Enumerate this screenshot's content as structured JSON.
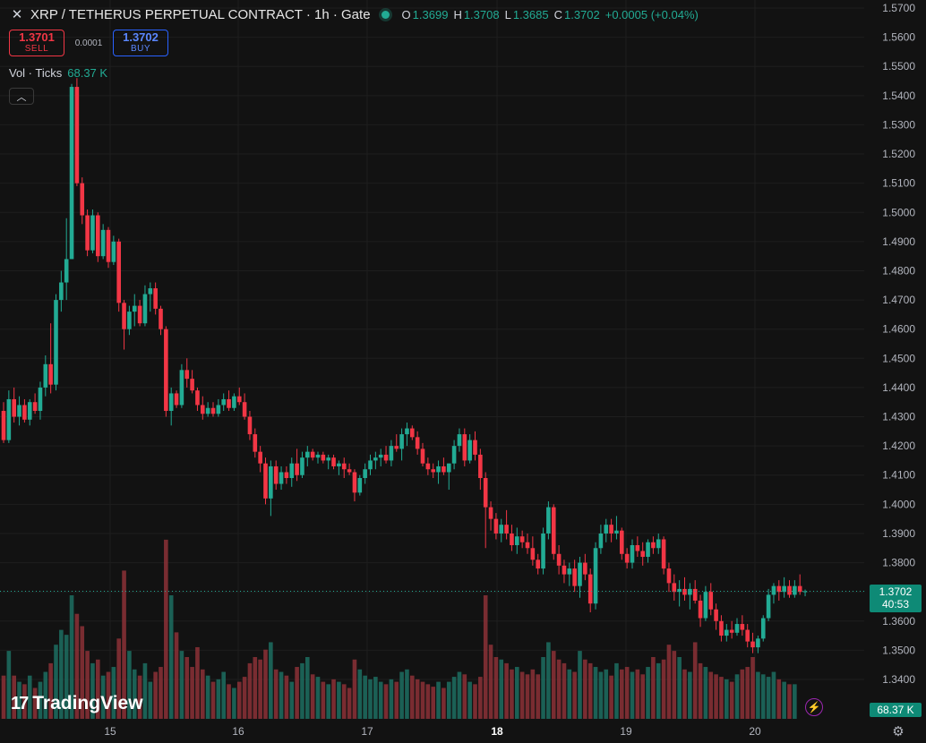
{
  "header": {
    "symbol_icon": "close-x-icon",
    "title": "XRP / TETHERUS PERPETUAL CONTRACT · 1h · Gate",
    "status_color": "#22ab94",
    "ohlc": {
      "o_label": "O",
      "o": "1.3699",
      "h_label": "H",
      "h": "1.3708",
      "l_label": "L",
      "l": "1.3685",
      "c_label": "C",
      "c": "1.3702"
    },
    "change": "+0.0005 (+0.04%)"
  },
  "trade": {
    "sell_price": "1.3701",
    "sell_label": "SELL",
    "spread": "0.0001",
    "buy_price": "1.3702",
    "buy_label": "BUY"
  },
  "volume_legend": {
    "label": "Vol · Ticks",
    "value": "68.37 K"
  },
  "collapse_icon": "chevron-up-icon",
  "logo": {
    "text": "TradingView",
    "mark_icon": "tradingview-logo-icon"
  },
  "price_axis": {
    "ticks": [
      "1.5700",
      "1.5600",
      "1.5500",
      "1.5400",
      "1.5300",
      "1.5200",
      "1.5100",
      "1.5000",
      "1.4900",
      "1.4800",
      "1.4700",
      "1.4600",
      "1.4500",
      "1.4400",
      "1.4300",
      "1.4200",
      "1.4100",
      "1.4000",
      "1.3900",
      "1.3800",
      "1.3700",
      "1.3600",
      "1.3500",
      "1.3400"
    ],
    "last_price": "1.3702",
    "countdown": "40:53",
    "last_volume": "68.37 K"
  },
  "time_axis": {
    "labels": [
      "15",
      "16",
      "17",
      "18",
      "19",
      "20"
    ]
  },
  "colors": {
    "up": "#22ab94",
    "down": "#f23645",
    "background": "#121212",
    "grid": "#1e1e1e"
  },
  "bottom_icons": {
    "bolt": "bolt-icon",
    "settings": "gear-icon"
  },
  "chart_data": {
    "type": "candlestick",
    "interval": "1h",
    "price_range": [
      1.335,
      1.572
    ],
    "candles": [
      {
        "o": 1.432,
        "h": 1.435,
        "l": 1.421,
        "c": 1.422
      },
      {
        "o": 1.422,
        "h": 1.439,
        "l": 1.421,
        "c": 1.436
      },
      {
        "o": 1.436,
        "h": 1.44,
        "l": 1.428,
        "c": 1.43
      },
      {
        "o": 1.43,
        "h": 1.437,
        "l": 1.427,
        "c": 1.434
      },
      {
        "o": 1.434,
        "h": 1.436,
        "l": 1.428,
        "c": 1.429
      },
      {
        "o": 1.429,
        "h": 1.436,
        "l": 1.427,
        "c": 1.435
      },
      {
        "o": 1.435,
        "h": 1.438,
        "l": 1.431,
        "c": 1.432
      },
      {
        "o": 1.432,
        "h": 1.442,
        "l": 1.429,
        "c": 1.44
      },
      {
        "o": 1.44,
        "h": 1.451,
        "l": 1.437,
        "c": 1.448
      },
      {
        "o": 1.448,
        "h": 1.462,
        "l": 1.438,
        "c": 1.441
      },
      {
        "o": 1.441,
        "h": 1.472,
        "l": 1.439,
        "c": 1.47
      },
      {
        "o": 1.47,
        "h": 1.48,
        "l": 1.466,
        "c": 1.476
      },
      {
        "o": 1.476,
        "h": 1.498,
        "l": 1.47,
        "c": 1.484
      },
      {
        "o": 1.484,
        "h": 1.544,
        "l": 1.484,
        "c": 1.543
      },
      {
        "o": 1.543,
        "h": 1.546,
        "l": 1.509,
        "c": 1.51
      },
      {
        "o": 1.51,
        "h": 1.512,
        "l": 1.496,
        "c": 1.499
      },
      {
        "o": 1.499,
        "h": 1.501,
        "l": 1.485,
        "c": 1.487
      },
      {
        "o": 1.487,
        "h": 1.501,
        "l": 1.486,
        "c": 1.499
      },
      {
        "o": 1.499,
        "h": 1.5,
        "l": 1.483,
        "c": 1.485
      },
      {
        "o": 1.485,
        "h": 1.496,
        "l": 1.484,
        "c": 1.494
      },
      {
        "o": 1.494,
        "h": 1.495,
        "l": 1.481,
        "c": 1.483
      },
      {
        "o": 1.483,
        "h": 1.492,
        "l": 1.482,
        "c": 1.49
      },
      {
        "o": 1.49,
        "h": 1.491,
        "l": 1.466,
        "c": 1.469
      },
      {
        "o": 1.469,
        "h": 1.47,
        "l": 1.453,
        "c": 1.46
      },
      {
        "o": 1.46,
        "h": 1.468,
        "l": 1.458,
        "c": 1.466
      },
      {
        "o": 1.466,
        "h": 1.472,
        "l": 1.461,
        "c": 1.468
      },
      {
        "o": 1.468,
        "h": 1.47,
        "l": 1.461,
        "c": 1.462
      },
      {
        "o": 1.462,
        "h": 1.475,
        "l": 1.461,
        "c": 1.472
      },
      {
        "o": 1.472,
        "h": 1.476,
        "l": 1.466,
        "c": 1.474
      },
      {
        "o": 1.474,
        "h": 1.476,
        "l": 1.465,
        "c": 1.467
      },
      {
        "o": 1.467,
        "h": 1.468,
        "l": 1.458,
        "c": 1.46
      },
      {
        "o": 1.46,
        "h": 1.461,
        "l": 1.43,
        "c": 1.432
      },
      {
        "o": 1.432,
        "h": 1.44,
        "l": 1.427,
        "c": 1.438
      },
      {
        "o": 1.438,
        "h": 1.439,
        "l": 1.433,
        "c": 1.434
      },
      {
        "o": 1.434,
        "h": 1.448,
        "l": 1.433,
        "c": 1.446
      },
      {
        "o": 1.446,
        "h": 1.45,
        "l": 1.44,
        "c": 1.443
      },
      {
        "o": 1.443,
        "h": 1.446,
        "l": 1.438,
        "c": 1.439
      },
      {
        "o": 1.439,
        "h": 1.44,
        "l": 1.432,
        "c": 1.434
      },
      {
        "o": 1.434,
        "h": 1.437,
        "l": 1.429,
        "c": 1.431
      },
      {
        "o": 1.431,
        "h": 1.435,
        "l": 1.43,
        "c": 1.433
      },
      {
        "o": 1.433,
        "h": 1.435,
        "l": 1.43,
        "c": 1.431
      },
      {
        "o": 1.431,
        "h": 1.436,
        "l": 1.43,
        "c": 1.434
      },
      {
        "o": 1.434,
        "h": 1.438,
        "l": 1.432,
        "c": 1.436
      },
      {
        "o": 1.436,
        "h": 1.439,
        "l": 1.432,
        "c": 1.433
      },
      {
        "o": 1.433,
        "h": 1.438,
        "l": 1.432,
        "c": 1.437
      },
      {
        "o": 1.437,
        "h": 1.44,
        "l": 1.434,
        "c": 1.435
      },
      {
        "o": 1.435,
        "h": 1.438,
        "l": 1.429,
        "c": 1.43
      },
      {
        "o": 1.43,
        "h": 1.432,
        "l": 1.422,
        "c": 1.424
      },
      {
        "o": 1.424,
        "h": 1.426,
        "l": 1.416,
        "c": 1.418
      },
      {
        "o": 1.418,
        "h": 1.42,
        "l": 1.411,
        "c": 1.414
      },
      {
        "o": 1.414,
        "h": 1.416,
        "l": 1.4,
        "c": 1.402
      },
      {
        "o": 1.402,
        "h": 1.415,
        "l": 1.396,
        "c": 1.413
      },
      {
        "o": 1.413,
        "h": 1.415,
        "l": 1.405,
        "c": 1.407
      },
      {
        "o": 1.407,
        "h": 1.413,
        "l": 1.405,
        "c": 1.411
      },
      {
        "o": 1.411,
        "h": 1.413,
        "l": 1.407,
        "c": 1.409
      },
      {
        "o": 1.409,
        "h": 1.416,
        "l": 1.406,
        "c": 1.414
      },
      {
        "o": 1.414,
        "h": 1.419,
        "l": 1.408,
        "c": 1.41
      },
      {
        "o": 1.41,
        "h": 1.418,
        "l": 1.409,
        "c": 1.416
      },
      {
        "o": 1.416,
        "h": 1.42,
        "l": 1.413,
        "c": 1.418
      },
      {
        "o": 1.418,
        "h": 1.419,
        "l": 1.415,
        "c": 1.416
      },
      {
        "o": 1.416,
        "h": 1.418,
        "l": 1.414,
        "c": 1.417
      },
      {
        "o": 1.417,
        "h": 1.418,
        "l": 1.414,
        "c": 1.415
      },
      {
        "o": 1.415,
        "h": 1.417,
        "l": 1.412,
        "c": 1.416
      },
      {
        "o": 1.416,
        "h": 1.417,
        "l": 1.412,
        "c": 1.413
      },
      {
        "o": 1.413,
        "h": 1.415,
        "l": 1.41,
        "c": 1.414
      },
      {
        "o": 1.414,
        "h": 1.416,
        "l": 1.409,
        "c": 1.412
      },
      {
        "o": 1.412,
        "h": 1.414,
        "l": 1.41,
        "c": 1.411
      },
      {
        "o": 1.411,
        "h": 1.412,
        "l": 1.401,
        "c": 1.404
      },
      {
        "o": 1.404,
        "h": 1.41,
        "l": 1.403,
        "c": 1.409
      },
      {
        "o": 1.409,
        "h": 1.414,
        "l": 1.407,
        "c": 1.412
      },
      {
        "o": 1.412,
        "h": 1.417,
        "l": 1.41,
        "c": 1.415
      },
      {
        "o": 1.415,
        "h": 1.418,
        "l": 1.412,
        "c": 1.416
      },
      {
        "o": 1.416,
        "h": 1.419,
        "l": 1.413,
        "c": 1.417
      },
      {
        "o": 1.417,
        "h": 1.42,
        "l": 1.414,
        "c": 1.415
      },
      {
        "o": 1.415,
        "h": 1.422,
        "l": 1.413,
        "c": 1.42
      },
      {
        "o": 1.42,
        "h": 1.424,
        "l": 1.418,
        "c": 1.419
      },
      {
        "o": 1.419,
        "h": 1.426,
        "l": 1.415,
        "c": 1.424
      },
      {
        "o": 1.424,
        "h": 1.428,
        "l": 1.42,
        "c": 1.426
      },
      {
        "o": 1.426,
        "h": 1.427,
        "l": 1.422,
        "c": 1.423
      },
      {
        "o": 1.423,
        "h": 1.425,
        "l": 1.417,
        "c": 1.419
      },
      {
        "o": 1.419,
        "h": 1.421,
        "l": 1.413,
        "c": 1.414
      },
      {
        "o": 1.414,
        "h": 1.416,
        "l": 1.41,
        "c": 1.412
      },
      {
        "o": 1.412,
        "h": 1.414,
        "l": 1.409,
        "c": 1.411
      },
      {
        "o": 1.411,
        "h": 1.415,
        "l": 1.407,
        "c": 1.413
      },
      {
        "o": 1.413,
        "h": 1.416,
        "l": 1.41,
        "c": 1.411
      },
      {
        "o": 1.411,
        "h": 1.414,
        "l": 1.405,
        "c": 1.414
      },
      {
        "o": 1.414,
        "h": 1.422,
        "l": 1.412,
        "c": 1.42
      },
      {
        "o": 1.42,
        "h": 1.426,
        "l": 1.418,
        "c": 1.424
      },
      {
        "o": 1.424,
        "h": 1.426,
        "l": 1.413,
        "c": 1.415
      },
      {
        "o": 1.415,
        "h": 1.424,
        "l": 1.414,
        "c": 1.422
      },
      {
        "o": 1.422,
        "h": 1.425,
        "l": 1.415,
        "c": 1.417
      },
      {
        "o": 1.417,
        "h": 1.419,
        "l": 1.405,
        "c": 1.409
      },
      {
        "o": 1.409,
        "h": 1.411,
        "l": 1.385,
        "c": 1.399
      },
      {
        "o": 1.399,
        "h": 1.401,
        "l": 1.391,
        "c": 1.395
      },
      {
        "o": 1.395,
        "h": 1.397,
        "l": 1.388,
        "c": 1.39
      },
      {
        "o": 1.39,
        "h": 1.395,
        "l": 1.387,
        "c": 1.393
      },
      {
        "o": 1.393,
        "h": 1.398,
        "l": 1.388,
        "c": 1.39
      },
      {
        "o": 1.39,
        "h": 1.393,
        "l": 1.384,
        "c": 1.386
      },
      {
        "o": 1.386,
        "h": 1.392,
        "l": 1.383,
        "c": 1.389
      },
      {
        "o": 1.389,
        "h": 1.391,
        "l": 1.385,
        "c": 1.387
      },
      {
        "o": 1.387,
        "h": 1.39,
        "l": 1.383,
        "c": 1.385
      },
      {
        "o": 1.385,
        "h": 1.389,
        "l": 1.379,
        "c": 1.381
      },
      {
        "o": 1.381,
        "h": 1.383,
        "l": 1.376,
        "c": 1.378
      },
      {
        "o": 1.378,
        "h": 1.392,
        "l": 1.376,
        "c": 1.39
      },
      {
        "o": 1.39,
        "h": 1.401,
        "l": 1.388,
        "c": 1.399
      },
      {
        "o": 1.399,
        "h": 1.4,
        "l": 1.381,
        "c": 1.383
      },
      {
        "o": 1.383,
        "h": 1.386,
        "l": 1.376,
        "c": 1.379
      },
      {
        "o": 1.379,
        "h": 1.381,
        "l": 1.373,
        "c": 1.376
      },
      {
        "o": 1.376,
        "h": 1.38,
        "l": 1.372,
        "c": 1.378
      },
      {
        "o": 1.378,
        "h": 1.381,
        "l": 1.37,
        "c": 1.372
      },
      {
        "o": 1.372,
        "h": 1.382,
        "l": 1.368,
        "c": 1.38
      },
      {
        "o": 1.38,
        "h": 1.383,
        "l": 1.374,
        "c": 1.376
      },
      {
        "o": 1.376,
        "h": 1.378,
        "l": 1.363,
        "c": 1.366
      },
      {
        "o": 1.366,
        "h": 1.387,
        "l": 1.364,
        "c": 1.385
      },
      {
        "o": 1.385,
        "h": 1.393,
        "l": 1.383,
        "c": 1.39
      },
      {
        "o": 1.39,
        "h": 1.395,
        "l": 1.387,
        "c": 1.393
      },
      {
        "o": 1.393,
        "h": 1.395,
        "l": 1.387,
        "c": 1.39
      },
      {
        "o": 1.39,
        "h": 1.396,
        "l": 1.388,
        "c": 1.391
      },
      {
        "o": 1.391,
        "h": 1.392,
        "l": 1.381,
        "c": 1.383
      },
      {
        "o": 1.383,
        "h": 1.385,
        "l": 1.378,
        "c": 1.38
      },
      {
        "o": 1.38,
        "h": 1.388,
        "l": 1.378,
        "c": 1.386
      },
      {
        "o": 1.386,
        "h": 1.389,
        "l": 1.382,
        "c": 1.384
      },
      {
        "o": 1.384,
        "h": 1.387,
        "l": 1.379,
        "c": 1.382
      },
      {
        "o": 1.382,
        "h": 1.388,
        "l": 1.38,
        "c": 1.387
      },
      {
        "o": 1.387,
        "h": 1.389,
        "l": 1.383,
        "c": 1.385
      },
      {
        "o": 1.385,
        "h": 1.39,
        "l": 1.383,
        "c": 1.388
      },
      {
        "o": 1.388,
        "h": 1.389,
        "l": 1.376,
        "c": 1.378
      },
      {
        "o": 1.378,
        "h": 1.38,
        "l": 1.37,
        "c": 1.373
      },
      {
        "o": 1.373,
        "h": 1.376,
        "l": 1.367,
        "c": 1.37
      },
      {
        "o": 1.37,
        "h": 1.374,
        "l": 1.365,
        "c": 1.371
      },
      {
        "o": 1.371,
        "h": 1.375,
        "l": 1.367,
        "c": 1.369
      },
      {
        "o": 1.369,
        "h": 1.373,
        "l": 1.364,
        "c": 1.371
      },
      {
        "o": 1.371,
        "h": 1.374,
        "l": 1.366,
        "c": 1.367
      },
      {
        "o": 1.367,
        "h": 1.369,
        "l": 1.358,
        "c": 1.361
      },
      {
        "o": 1.361,
        "h": 1.372,
        "l": 1.36,
        "c": 1.37
      },
      {
        "o": 1.37,
        "h": 1.373,
        "l": 1.362,
        "c": 1.364
      },
      {
        "o": 1.364,
        "h": 1.366,
        "l": 1.357,
        "c": 1.36
      },
      {
        "o": 1.36,
        "h": 1.362,
        "l": 1.353,
        "c": 1.355
      },
      {
        "o": 1.355,
        "h": 1.359,
        "l": 1.353,
        "c": 1.357
      },
      {
        "o": 1.357,
        "h": 1.36,
        "l": 1.354,
        "c": 1.356
      },
      {
        "o": 1.356,
        "h": 1.361,
        "l": 1.355,
        "c": 1.359
      },
      {
        "o": 1.359,
        "h": 1.362,
        "l": 1.355,
        "c": 1.357
      },
      {
        "o": 1.357,
        "h": 1.359,
        "l": 1.351,
        "c": 1.353
      },
      {
        "o": 1.353,
        "h": 1.356,
        "l": 1.349,
        "c": 1.351
      },
      {
        "o": 1.351,
        "h": 1.355,
        "l": 1.349,
        "c": 1.354
      },
      {
        "o": 1.354,
        "h": 1.362,
        "l": 1.353,
        "c": 1.361
      },
      {
        "o": 1.361,
        "h": 1.371,
        "l": 1.36,
        "c": 1.369
      },
      {
        "o": 1.369,
        "h": 1.373,
        "l": 1.366,
        "c": 1.372
      },
      {
        "o": 1.372,
        "h": 1.374,
        "l": 1.367,
        "c": 1.37
      },
      {
        "o": 1.37,
        "h": 1.375,
        "l": 1.368,
        "c": 1.372
      },
      {
        "o": 1.372,
        "h": 1.374,
        "l": 1.368,
        "c": 1.369
      },
      {
        "o": 1.369,
        "h": 1.374,
        "l": 1.368,
        "c": 1.372
      },
      {
        "o": 1.372,
        "h": 1.376,
        "l": 1.369,
        "c": 1.37
      },
      {
        "o": 1.3699,
        "h": 1.3708,
        "l": 1.3685,
        "c": 1.3702
      }
    ],
    "volume_levels": [
      0.35,
      0.55,
      0.35,
      0.3,
      0.28,
      0.35,
      0.25,
      0.3,
      0.38,
      0.45,
      0.6,
      0.72,
      0.68,
      1.0,
      0.85,
      0.75,
      0.55,
      0.45,
      0.48,
      0.35,
      0.38,
      0.42,
      0.65,
      1.2,
      0.55,
      0.4,
      0.35,
      0.45,
      0.3,
      0.38,
      0.42,
      1.45,
      1.0,
      0.7,
      0.55,
      0.5,
      0.42,
      0.58,
      0.4,
      0.35,
      0.3,
      0.32,
      0.38,
      0.28,
      0.25,
      0.3,
      0.34,
      0.45,
      0.5,
      0.48,
      0.56,
      0.62,
      0.4,
      0.38,
      0.35,
      0.3,
      0.42,
      0.45,
      0.5,
      0.36,
      0.34,
      0.3,
      0.28,
      0.32,
      0.3,
      0.28,
      0.25,
      0.48,
      0.4,
      0.35,
      0.32,
      0.34,
      0.3,
      0.28,
      0.32,
      0.3,
      0.38,
      0.4,
      0.35,
      0.32,
      0.3,
      0.28,
      0.26,
      0.3,
      0.25,
      0.3,
      0.34,
      0.38,
      0.36,
      0.3,
      0.28,
      0.34,
      1.0,
      0.6,
      0.5,
      0.48,
      0.45,
      0.4,
      0.42,
      0.38,
      0.36,
      0.4,
      0.36,
      0.5,
      0.62,
      0.55,
      0.48,
      0.45,
      0.4,
      0.38,
      0.55,
      0.48,
      0.45,
      0.42,
      0.38,
      0.4,
      0.35,
      0.45,
      0.4,
      0.42,
      0.38,
      0.4,
      0.36,
      0.42,
      0.5,
      0.45,
      0.48,
      0.6,
      0.55,
      0.5,
      0.4,
      0.38,
      0.62,
      0.45,
      0.42,
      0.38,
      0.36,
      0.34,
      0.32,
      0.3,
      0.36,
      0.4,
      0.42,
      0.5,
      0.38,
      0.36,
      0.34,
      0.38,
      0.32,
      0.3,
      0.28,
      0.28
    ]
  }
}
